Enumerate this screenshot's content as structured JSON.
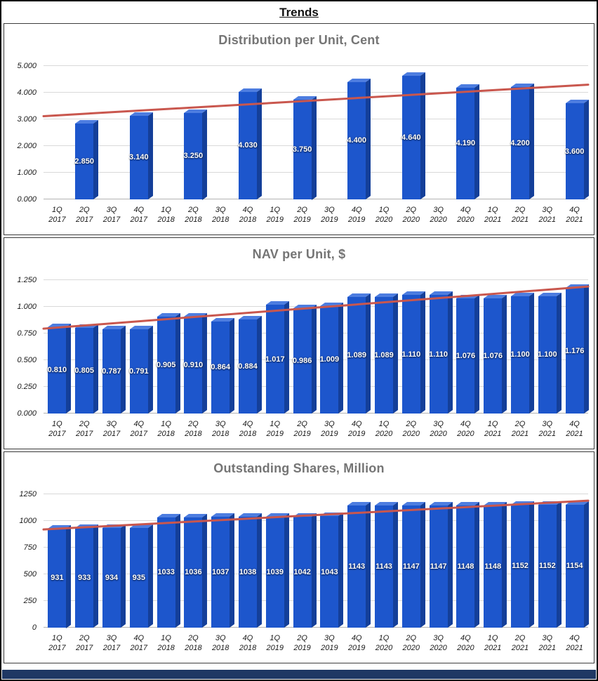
{
  "page_title": "Trends",
  "colors": {
    "bar_front": "#1d56cc",
    "bar_top": "#4d7de0",
    "bar_side": "#143f99",
    "trendline": "#c9574e",
    "chart_title": "#757575",
    "gridline": "#d9d9d9",
    "axis_text": "#1a1a1a",
    "bottom_strip": "#1f3864"
  },
  "chart_data": [
    {
      "type": "bar",
      "title": "Distribution per Unit, Cent",
      "categories": [
        "1Q 2017",
        "2Q 2017",
        "3Q 2017",
        "4Q 2017",
        "1Q 2018",
        "2Q 2018",
        "3Q 2018",
        "4Q 2018",
        "1Q 2019",
        "2Q 2019",
        "3Q 2019",
        "4Q 2019",
        "1Q 2020",
        "2Q 2020",
        "3Q 2020",
        "4Q 2020",
        "1Q 2021",
        "2Q 2021",
        "3Q 2021",
        "4Q 2021"
      ],
      "values": [
        null,
        2.85,
        null,
        3.14,
        null,
        3.25,
        null,
        4.03,
        null,
        3.75,
        null,
        4.4,
        null,
        4.64,
        null,
        4.19,
        null,
        4.2,
        null,
        3.6
      ],
      "decimals": 3,
      "ylim": [
        0,
        5
      ],
      "yticks": [
        "0.000",
        "1.000",
        "2.000",
        "3.000",
        "4.000",
        "5.000"
      ],
      "trendline": {
        "start": 3.12,
        "end": 4.3
      },
      "grid": true,
      "legend_position": "none",
      "xlabel": "",
      "ylabel": ""
    },
    {
      "type": "bar",
      "title": "NAV per Unit, $",
      "categories": [
        "1Q 2017",
        "2Q 2017",
        "3Q 2017",
        "4Q 2017",
        "1Q 2018",
        "2Q 2018",
        "3Q 2018",
        "4Q 2018",
        "1Q 2019",
        "2Q 2019",
        "3Q 2019",
        "4Q 2019",
        "1Q 2020",
        "2Q 2020",
        "3Q 2020",
        "4Q 2020",
        "1Q 2021",
        "2Q 2021",
        "3Q 2021",
        "4Q 2021"
      ],
      "values": [
        0.81,
        0.805,
        0.787,
        0.791,
        0.905,
        0.91,
        0.864,
        0.884,
        1.017,
        0.986,
        1.009,
        1.089,
        1.089,
        1.11,
        1.11,
        1.076,
        1.076,
        1.1,
        1.1,
        1.176
      ],
      "decimals": 3,
      "ylim": [
        0,
        1.25
      ],
      "yticks": [
        "0.000",
        "0.250",
        "0.500",
        "0.750",
        "1.000",
        "1.250"
      ],
      "trendline": {
        "start": 0.795,
        "end": 1.19
      },
      "grid": true,
      "legend_position": "none",
      "xlabel": "",
      "ylabel": ""
    },
    {
      "type": "bar",
      "title": "Outstanding Shares, Million",
      "categories": [
        "1Q 2017",
        "2Q 2017",
        "3Q 2017",
        "4Q 2017",
        "1Q 2018",
        "2Q 2018",
        "3Q 2018",
        "4Q 2018",
        "1Q 2019",
        "2Q 2019",
        "3Q 2019",
        "4Q 2019",
        "1Q 2020",
        "2Q 2020",
        "3Q 2020",
        "4Q 2020",
        "1Q 2021",
        "2Q 2021",
        "3Q 2021",
        "4Q 2021"
      ],
      "values": [
        931,
        933,
        934,
        935,
        1033,
        1036,
        1037,
        1038,
        1039,
        1042,
        1043,
        1143,
        1143,
        1147,
        1147,
        1148,
        1148,
        1152,
        1152,
        1154
      ],
      "decimals": 0,
      "ylim": [
        0,
        1250
      ],
      "yticks": [
        "0",
        "250",
        "500",
        "750",
        "1000",
        "1250"
      ],
      "trendline": {
        "start": 920,
        "end": 1190
      },
      "grid": true,
      "legend_position": "none",
      "xlabel": "",
      "ylabel": ""
    }
  ]
}
